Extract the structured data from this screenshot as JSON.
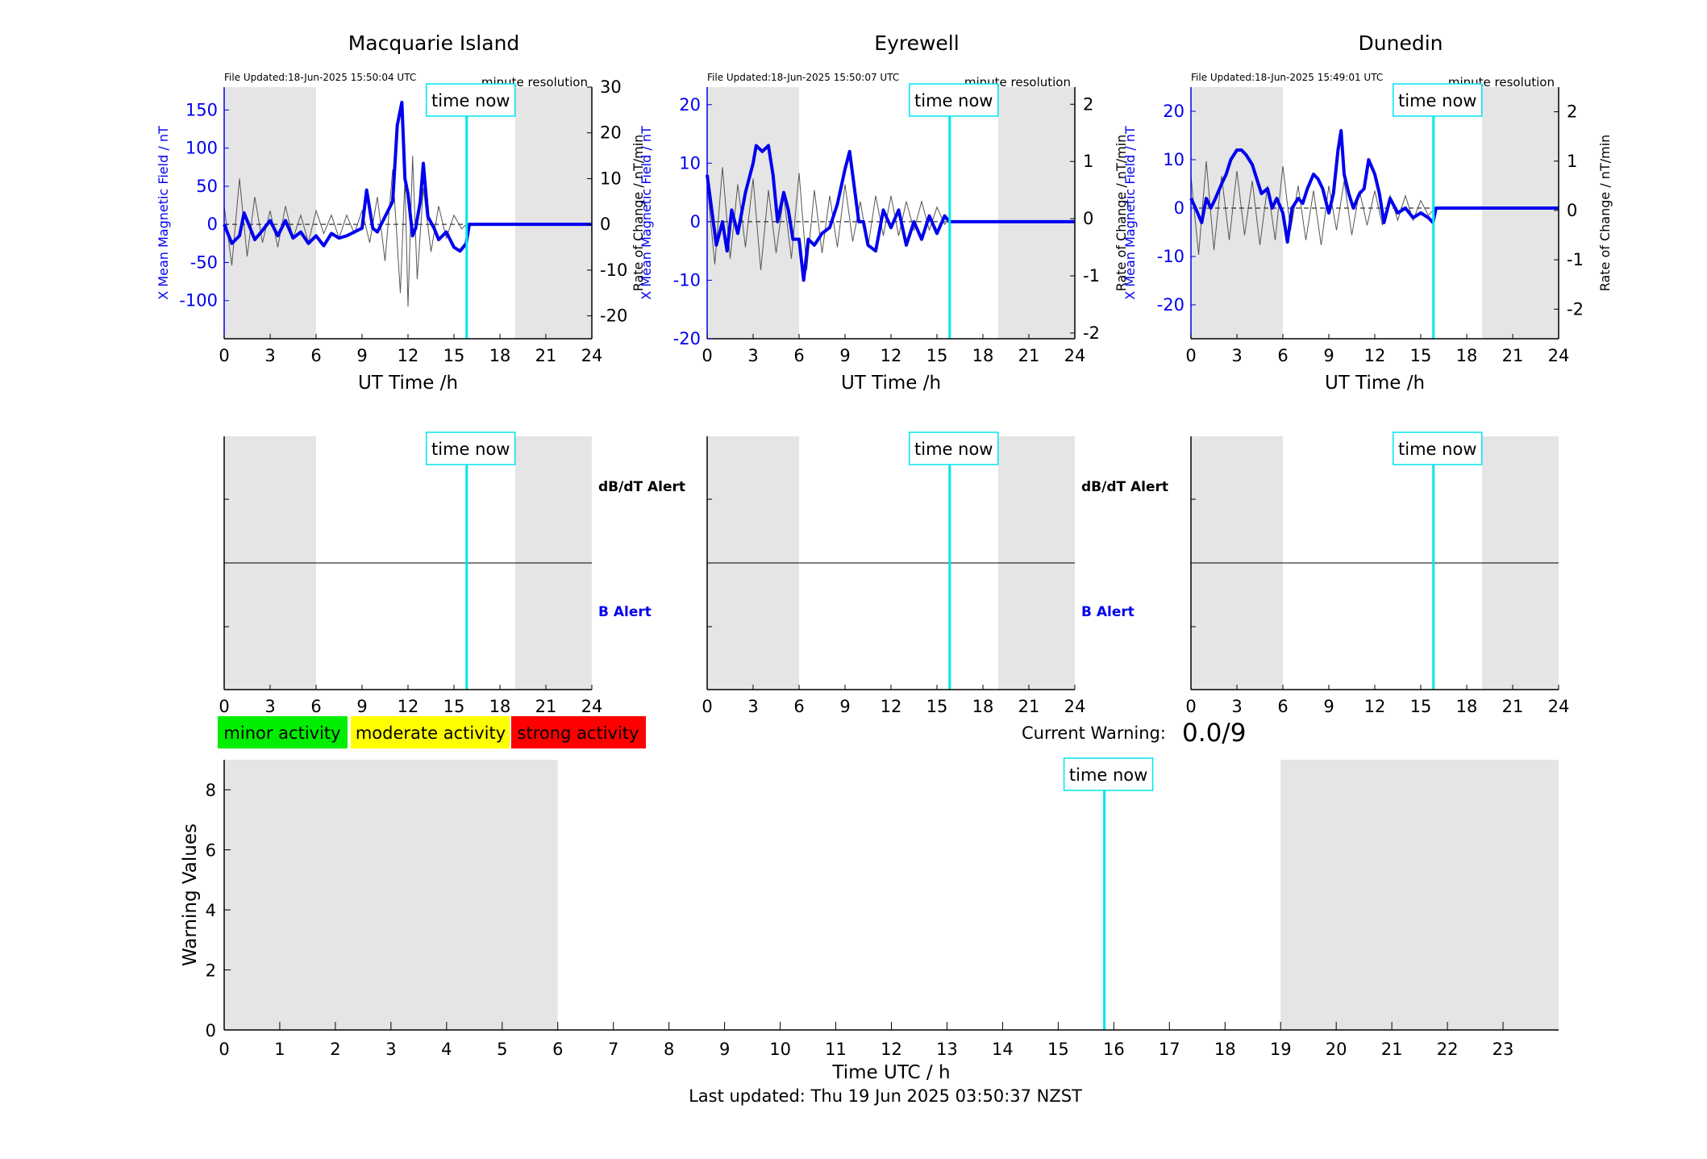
{
  "colors": {
    "field": "#0000ee",
    "rate": "#555555",
    "now_line": "#00e5ee",
    "shade": "#e5e5e5",
    "minor": "#00ee00",
    "moderate": "#ffff00",
    "strong": "#ff0000"
  },
  "common": {
    "xlabel": "UT Time /h",
    "ylabel_left": "X Mean Magnetic Field / nT",
    "ylabel_right": "Rate of Change / nT/min",
    "resolution": "minute resolution",
    "time_now": "time now",
    "dbdt_alert": "dB/dT Alert",
    "b_alert": "B Alert"
  },
  "legend": {
    "minor": "minor activity",
    "moderate": "moderate activity",
    "strong": "strong activity"
  },
  "warning": {
    "label": "Current Warning:",
    "value": "0.0/9"
  },
  "footer": "Last updated: Thu 19 Jun 2025 03:50:37 NZST",
  "chart_data": [
    {
      "type": "line",
      "title": "Macquarie Island",
      "file_updated": "File Updated:18-Jun-2025 15:50:04 UTC",
      "xlim": [
        0,
        24
      ],
      "xticks": [
        0,
        3,
        6,
        9,
        12,
        15,
        18,
        21,
        24
      ],
      "ylim_left": [
        -150,
        180
      ],
      "yticks_left": [
        -100,
        -50,
        0,
        50,
        100,
        150
      ],
      "ylim_right": [
        -25,
        30
      ],
      "yticks_right": [
        -20,
        -10,
        0,
        10,
        20,
        30
      ],
      "now_hour": 15.83,
      "night_shading": [
        [
          0,
          6
        ],
        [
          19,
          24
        ]
      ],
      "field_series": {
        "x": [
          0,
          0.5,
          1,
          1.3,
          1.7,
          2,
          2.5,
          3,
          3.5,
          4,
          4.5,
          5,
          5.5,
          6,
          6.5,
          7,
          7.5,
          8,
          8.5,
          9,
          9.3,
          9.7,
          10,
          10.5,
          11,
          11.3,
          11.6,
          11.8,
          12,
          12.3,
          12.5,
          12.8,
          13,
          13.3,
          13.7,
          14,
          14.5,
          15,
          15.4,
          15.8,
          16,
          24
        ],
        "y": [
          0,
          -25,
          -15,
          15,
          -5,
          -20,
          -8,
          5,
          -15,
          5,
          -18,
          -10,
          -25,
          -15,
          -28,
          -12,
          -18,
          -15,
          -10,
          -5,
          45,
          -5,
          -10,
          10,
          30,
          130,
          160,
          60,
          40,
          -15,
          -5,
          30,
          80,
          10,
          -5,
          -20,
          -10,
          -30,
          -35,
          -25,
          0,
          0
        ]
      },
      "rate_series": {
        "x": [
          0,
          0.5,
          1,
          1.5,
          2,
          2.5,
          3,
          3.5,
          4,
          4.5,
          5,
          5.5,
          6,
          6.5,
          7,
          7.5,
          8,
          8.5,
          9,
          9.5,
          10,
          10.5,
          11,
          11.5,
          11.8,
          12,
          12.3,
          12.6,
          13,
          13.5,
          14,
          14.5,
          15,
          15.5,
          15.8
        ],
        "y": [
          4,
          -9,
          10,
          -7,
          6,
          -4,
          3,
          -5,
          4,
          -3,
          2,
          -4,
          3,
          -2,
          2,
          -3,
          2,
          -2,
          3,
          -4,
          6,
          -8,
          12,
          -15,
          10,
          -18,
          15,
          -12,
          8,
          -6,
          4,
          -3,
          2,
          -1,
          0
        ]
      }
    },
    {
      "type": "line",
      "title": "Eyrewell",
      "file_updated": "File Updated:18-Jun-2025 15:50:07 UTC",
      "xlim": [
        0,
        24
      ],
      "xticks": [
        0,
        3,
        6,
        9,
        12,
        15,
        18,
        21,
        24
      ],
      "ylim_left": [
        -20,
        23
      ],
      "yticks_left": [
        -20,
        -10,
        0,
        10,
        20
      ],
      "ylim_right": [
        -2.1,
        2.3
      ],
      "yticks_right": [
        -2,
        -1,
        0,
        1,
        2
      ],
      "now_hour": 15.83,
      "night_shading": [
        [
          0,
          6
        ],
        [
          19,
          24
        ]
      ],
      "field_series": {
        "x": [
          0,
          0.3,
          0.6,
          1,
          1.3,
          1.6,
          2,
          2.5,
          3,
          3.2,
          3.6,
          4,
          4.3,
          4.6,
          5,
          5.3,
          5.6,
          6,
          6.3,
          6.6,
          7,
          7.5,
          8,
          8.5,
          9,
          9.3,
          9.6,
          9.9,
          10.2,
          10.5,
          11,
          11.5,
          12,
          12.5,
          13,
          13.5,
          14,
          14.5,
          15,
          15.5,
          15.8,
          16,
          24
        ],
        "y": [
          8,
          2,
          -4,
          0,
          -5,
          2,
          -2,
          5,
          10,
          13,
          12,
          13,
          8,
          0,
          5,
          2,
          -3,
          -3,
          -10,
          -3,
          -4,
          -2,
          -1,
          3,
          9,
          12,
          6,
          0,
          0,
          -4,
          -5,
          2,
          -1,
          2,
          -4,
          0,
          -3,
          1,
          -2,
          1,
          0,
          0,
          0
        ]
      },
      "rate_series": {
        "x": [
          0,
          0.5,
          1,
          1.5,
          2,
          2.5,
          3,
          3.5,
          4,
          4.5,
          5,
          5.5,
          6,
          6.5,
          7,
          7.5,
          8,
          8.5,
          9,
          9.5,
          10,
          10.5,
          11,
          11.5,
          12,
          12.5,
          13,
          13.5,
          14,
          14.5,
          15,
          15.5,
          15.8
        ],
        "y": [
          0.6,
          -0.8,
          0.9,
          -0.7,
          0.6,
          -0.5,
          0.7,
          -0.9,
          0.5,
          -0.6,
          0.4,
          -0.7,
          0.8,
          -0.9,
          0.5,
          -0.6,
          0.4,
          -0.5,
          0.6,
          -0.4,
          0.3,
          -0.5,
          0.4,
          -0.3,
          0.4,
          -0.3,
          0.3,
          -0.2,
          0.3,
          -0.2,
          0.2,
          -0.1,
          0
        ]
      }
    },
    {
      "type": "line",
      "title": "Dunedin",
      "file_updated": "File Updated:18-Jun-2025 15:49:01 UTC",
      "xlim": [
        0,
        24
      ],
      "xticks": [
        0,
        3,
        6,
        9,
        12,
        15,
        18,
        21,
        24
      ],
      "ylim_left": [
        -27,
        25
      ],
      "yticks_left": [
        -20,
        -10,
        0,
        10,
        20
      ],
      "ylim_right": [
        -2.6,
        2.5
      ],
      "yticks_right": [
        -2,
        -1,
        0,
        1,
        2
      ],
      "now_hour": 15.83,
      "night_shading": [
        [
          0,
          6
        ],
        [
          19,
          24
        ]
      ],
      "field_series": {
        "x": [
          0,
          0.3,
          0.7,
          1,
          1.3,
          1.6,
          2,
          2.3,
          2.6,
          3,
          3.3,
          3.6,
          4,
          4.3,
          4.6,
          5,
          5.3,
          5.6,
          6,
          6.3,
          6.6,
          7,
          7.3,
          7.6,
          8,
          8.3,
          8.6,
          9,
          9.3,
          9.6,
          9.8,
          10,
          10.3,
          10.6,
          11,
          11.3,
          11.6,
          12,
          12.3,
          12.6,
          13,
          13.5,
          14,
          14.5,
          15,
          15.5,
          15.8,
          16,
          24
        ],
        "y": [
          2,
          0,
          -3,
          2,
          0,
          2,
          5,
          7,
          10,
          12,
          12,
          11,
          9,
          6,
          3,
          4,
          0,
          2,
          -1,
          -7,
          0,
          2,
          1,
          4,
          7,
          6,
          4,
          -1,
          3,
          12,
          16,
          7,
          3,
          0,
          3,
          4,
          10,
          7,
          3,
          -3,
          2,
          -1,
          0,
          -2,
          -1,
          -2,
          -3,
          0,
          0
        ]
      },
      "rate_series": {
        "x": [
          0,
          0.5,
          1,
          1.5,
          2,
          2.5,
          3,
          3.5,
          4,
          4.5,
          5,
          5.5,
          6,
          6.5,
          7,
          7.5,
          8,
          8.5,
          9,
          9.5,
          10,
          10.5,
          11,
          11.5,
          12,
          12.5,
          13,
          13.5,
          14,
          14.5,
          15,
          15.5,
          15.8
        ],
        "y": [
          0.7,
          -0.9,
          1.0,
          -0.8,
          0.7,
          -0.6,
          0.8,
          -0.5,
          0.6,
          -0.7,
          0.5,
          -0.6,
          0.9,
          -0.4,
          0.5,
          -0.6,
          0.4,
          -0.7,
          0.5,
          -0.4,
          0.6,
          -0.5,
          0.4,
          -0.3,
          0.4,
          -0.3,
          0.3,
          -0.2,
          0.3,
          -0.2,
          0.2,
          -0.1,
          0
        ]
      }
    },
    {
      "type": "line",
      "title": "",
      "xlabel": "Time UTC / h",
      "ylabel": "Warning Values",
      "xlim": [
        0,
        24
      ],
      "xticks": [
        0,
        1,
        2,
        3,
        4,
        5,
        6,
        7,
        8,
        9,
        10,
        11,
        12,
        13,
        14,
        15,
        16,
        17,
        18,
        19,
        20,
        21,
        22,
        23
      ],
      "ylim": [
        0,
        9
      ],
      "yticks": [
        0,
        2,
        4,
        6,
        8
      ],
      "now_hour": 15.83,
      "night_shading": [
        [
          0,
          6
        ],
        [
          19,
          24
        ]
      ]
    }
  ]
}
